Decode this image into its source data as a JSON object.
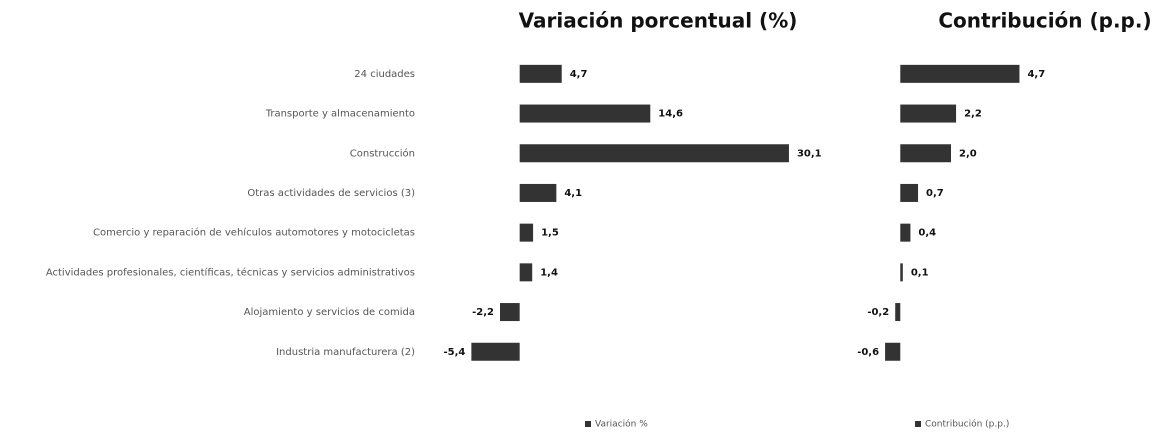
{
  "chart_data": [
    {
      "type": "bar",
      "orientation": "horizontal",
      "title": "Variación porcentual (%)",
      "categories": [
        "24 ciudades",
        "Transporte y almacenamiento",
        "Construcción",
        "Otras actividades de servicios (3)",
        "Comercio y reparación de vehículos automotores y motocicletas",
        "Actividades profesionales, científicas, técnicas y servicios administrativos",
        "Alojamiento y servicios de comida",
        "Industria manufacturera (2)"
      ],
      "series": [
        {
          "name": "Variación %",
          "color": "#333333",
          "values": [
            4.7,
            14.6,
            30.1,
            4.1,
            1.5,
            1.4,
            -2.2,
            -5.4
          ],
          "value_labels": [
            "4,7",
            "14,6",
            "30,1",
            "4,1",
            "1,5",
            "1,4",
            "-2,2",
            "-5,4"
          ]
        }
      ],
      "xlim": [
        -6,
        31
      ],
      "legend": "bottom"
    },
    {
      "type": "bar",
      "orientation": "horizontal",
      "title": "Contribución (p.p.)",
      "series": [
        {
          "name": "Contribución (p.p.)",
          "color": "#333333",
          "values": [
            4.7,
            2.2,
            2.0,
            0.7,
            0.4,
            0.1,
            -0.2,
            -0.6
          ],
          "value_labels": [
            "4,7",
            "2,2",
            "2,0",
            "0,7",
            "0,4",
            "0,1",
            "-0,2",
            "-0,6"
          ]
        }
      ],
      "xlim": [
        -0.8,
        4.8
      ],
      "legend": "bottom"
    }
  ]
}
